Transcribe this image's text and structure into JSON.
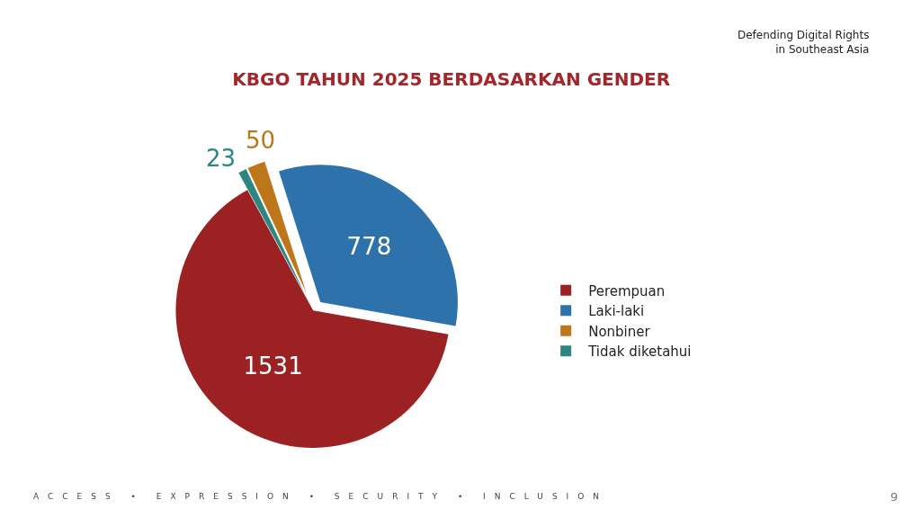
{
  "chart_data": {
    "type": "pie",
    "title": "KBGO TAHUN 2025 BERDASARKAN GENDER",
    "categories": [
      "Perempuan",
      "Laki-laki",
      "Nonbiner",
      "Tidak diketahui"
    ],
    "values": [
      1531,
      778,
      50,
      23
    ],
    "colors": [
      "#9c2122",
      "#2d72ab",
      "#bd7619",
      "#2e8680"
    ],
    "data_labels": true,
    "legend": "right",
    "annotations": [
      "Defending Digital Rights\nin Southeast Asia",
      "ACCESS • EXPRESSION • SECURITY • INCLUSION",
      "9"
    ]
  }
}
